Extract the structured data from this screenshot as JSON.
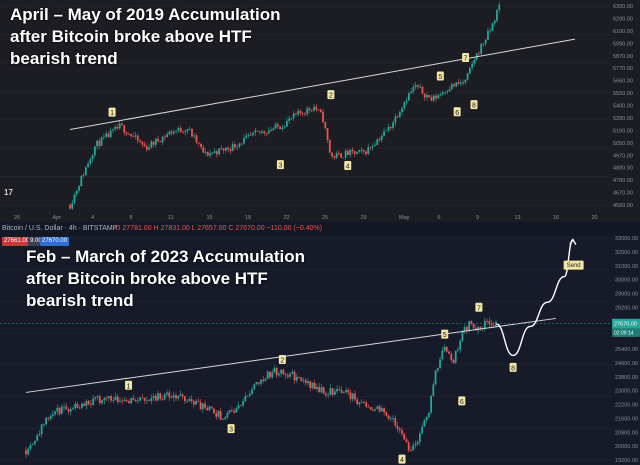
{
  "panel_top": {
    "title_lines": [
      "April – May of 2019 Accumulation",
      "after Bitcoin broke above HTF",
      "bearish trend"
    ],
    "x_ticks": [
      "26",
      "Apr",
      "4",
      "8",
      "11",
      "15",
      "18",
      "22",
      "25",
      "29",
      "May",
      "6",
      "9",
      "13",
      "16",
      "20"
    ],
    "y_ticks": [
      "6300.00",
      "6200.00",
      "6100.00",
      "5990.00",
      "5870.00",
      "5770.00",
      "5660.00",
      "5550.00",
      "5400.00",
      "5280.00",
      "5160.00",
      "5050.00",
      "4970.00",
      "4880.00",
      "4780.00",
      "4670.00",
      "4560.00"
    ],
    "wave_labels": [
      "1",
      "2",
      "3",
      "4",
      "5",
      "6",
      "7",
      "8"
    ],
    "watermark": "17"
  },
  "panel_bottom": {
    "title_lines": [
      "Feb – March of 2023 Accumulation",
      "after Bitcoin broke above HTF",
      "bearish trend"
    ],
    "symbol_line": "Bitcoin / U.S. Dollar · 4h · BITSTAMP",
    "ohlc_line": "O 27781.00  H 27831.00  L 27657.00  C 27670.00  −110.00 (−0.40%)",
    "price_box_sell": "27661.00",
    "price_box_spread": "9.00",
    "price_box_buy": "27670.00",
    "y_ticks": [
      "33000.00",
      "32000.00",
      "31000.00",
      "30000.00",
      "29000.00",
      "28200.00",
      "27600.00",
      "26200.00",
      "25400.00",
      "24600.00",
      "23800.00",
      "23000.00",
      "22200.00",
      "21600.00",
      "20800.00",
      "20000.00",
      "19200.00"
    ],
    "current_price": "27670.00",
    "current_time": "02:09:14",
    "wave_labels": [
      "1",
      "2",
      "3",
      "4",
      "5",
      "6",
      "7",
      "8"
    ],
    "send_label": "Send"
  },
  "colors": {
    "up": "#26a69a",
    "down": "#ef5350",
    "trendline": "#d8d8d8",
    "label_bg": "#f3e7a6"
  },
  "chart_data": [
    {
      "type": "candlestick",
      "title": "April – May of 2019 Accumulation after Bitcoin broke above HTF bearish trend",
      "ylim": [
        4560,
        6300
      ],
      "x_ticks": [
        "26",
        "Apr",
        "4",
        "8",
        "11",
        "15",
        "18",
        "22",
        "25",
        "29",
        "May",
        "6",
        "9",
        "13",
        "16",
        "20"
      ],
      "approx_path": [
        [
          0,
          4560
        ],
        [
          3,
          5080
        ],
        [
          6,
          5250
        ],
        [
          9,
          5060
        ],
        [
          12,
          5200
        ],
        [
          14,
          5230
        ],
        [
          16,
          5000
        ],
        [
          19,
          5060
        ],
        [
          22,
          5180
        ],
        [
          25,
          5250
        ],
        [
          27,
          5350
        ],
        [
          29,
          5420
        ],
        [
          30,
          5330
        ],
        [
          31,
          4980
        ],
        [
          33,
          5010
        ],
        [
          35,
          5020
        ],
        [
          38,
          5240
        ],
        [
          40,
          5500
        ],
        [
          41,
          5600
        ],
        [
          43,
          5480
        ],
        [
          45,
          5590
        ],
        [
          47,
          5640
        ],
        [
          48,
          5830
        ],
        [
          50,
          6100
        ],
        [
          51,
          6300
        ]
      ],
      "trendline": [
        [
          0,
          5220
        ],
        [
          60,
          6010
        ]
      ]
    },
    {
      "type": "candlestick",
      "title": "Feb – March of 2023 Accumulation after Bitcoin broke above HTF bearish trend",
      "ylim": [
        19200,
        33000
      ],
      "current_price": 27670,
      "approx_path": [
        [
          0,
          19800
        ],
        [
          3,
          22100
        ],
        [
          7,
          22800
        ],
        [
          10,
          23100
        ],
        [
          13,
          22900
        ],
        [
          16,
          23200
        ],
        [
          19,
          23000
        ],
        [
          21,
          22400
        ],
        [
          23,
          21900
        ],
        [
          25,
          22500
        ],
        [
          27,
          24100
        ],
        [
          29,
          24700
        ],
        [
          31,
          24500
        ],
        [
          33,
          23900
        ],
        [
          35,
          23400
        ],
        [
          37,
          23600
        ],
        [
          39,
          22800
        ],
        [
          41,
          22400
        ],
        [
          43,
          21800
        ],
        [
          44,
          20600
        ],
        [
          45,
          19900
        ],
        [
          46,
          20500
        ],
        [
          47,
          22000
        ],
        [
          48,
          24700
        ],
        [
          49,
          26400
        ],
        [
          50,
          25400
        ],
        [
          51,
          27000
        ],
        [
          52,
          27700
        ],
        [
          53,
          27200
        ],
        [
          54,
          27800
        ],
        [
          55,
          27670
        ]
      ],
      "projection": [
        [
          55,
          27670
        ],
        [
          57,
          25700
        ],
        [
          59,
          27500
        ],
        [
          61,
          29000
        ],
        [
          63,
          30600
        ],
        [
          64,
          32900
        ]
      ],
      "trendline": [
        [
          0,
          23400
        ],
        [
          62,
          28000
        ]
      ]
    }
  ]
}
